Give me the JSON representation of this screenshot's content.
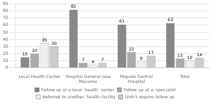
{
  "chart_data": {
    "type": "bar",
    "categories": [
      "Local Health Center",
      "Hospital General Jose\nMacamo",
      "Maputo Central\nHospital",
      "Total"
    ],
    "series": [
      {
        "name": "Follow up at a local  health  center",
        "color": "#888888",
        "values": [
          15,
          82,
          61,
          63
        ]
      },
      {
        "name": "Follow up at a  specialist",
        "color": "#aaaaaa",
        "values": [
          20,
          7,
          22,
          13
        ]
      },
      {
        "name": "Referred to another  health facility",
        "color": "#f0f0f0",
        "values": [
          35,
          4,
          9,
          10
        ]
      },
      {
        "name": "Didn't require follow up",
        "color": "#cccccc",
        "values": [
          30,
          7,
          17,
          14
        ]
      }
    ],
    "ylim": [
      0,
      90
    ],
    "yticks": [
      0,
      10,
      20,
      30,
      40,
      50,
      60,
      70,
      80,
      90
    ],
    "grid": true,
    "legend": "bottom",
    "data_labels": true
  }
}
